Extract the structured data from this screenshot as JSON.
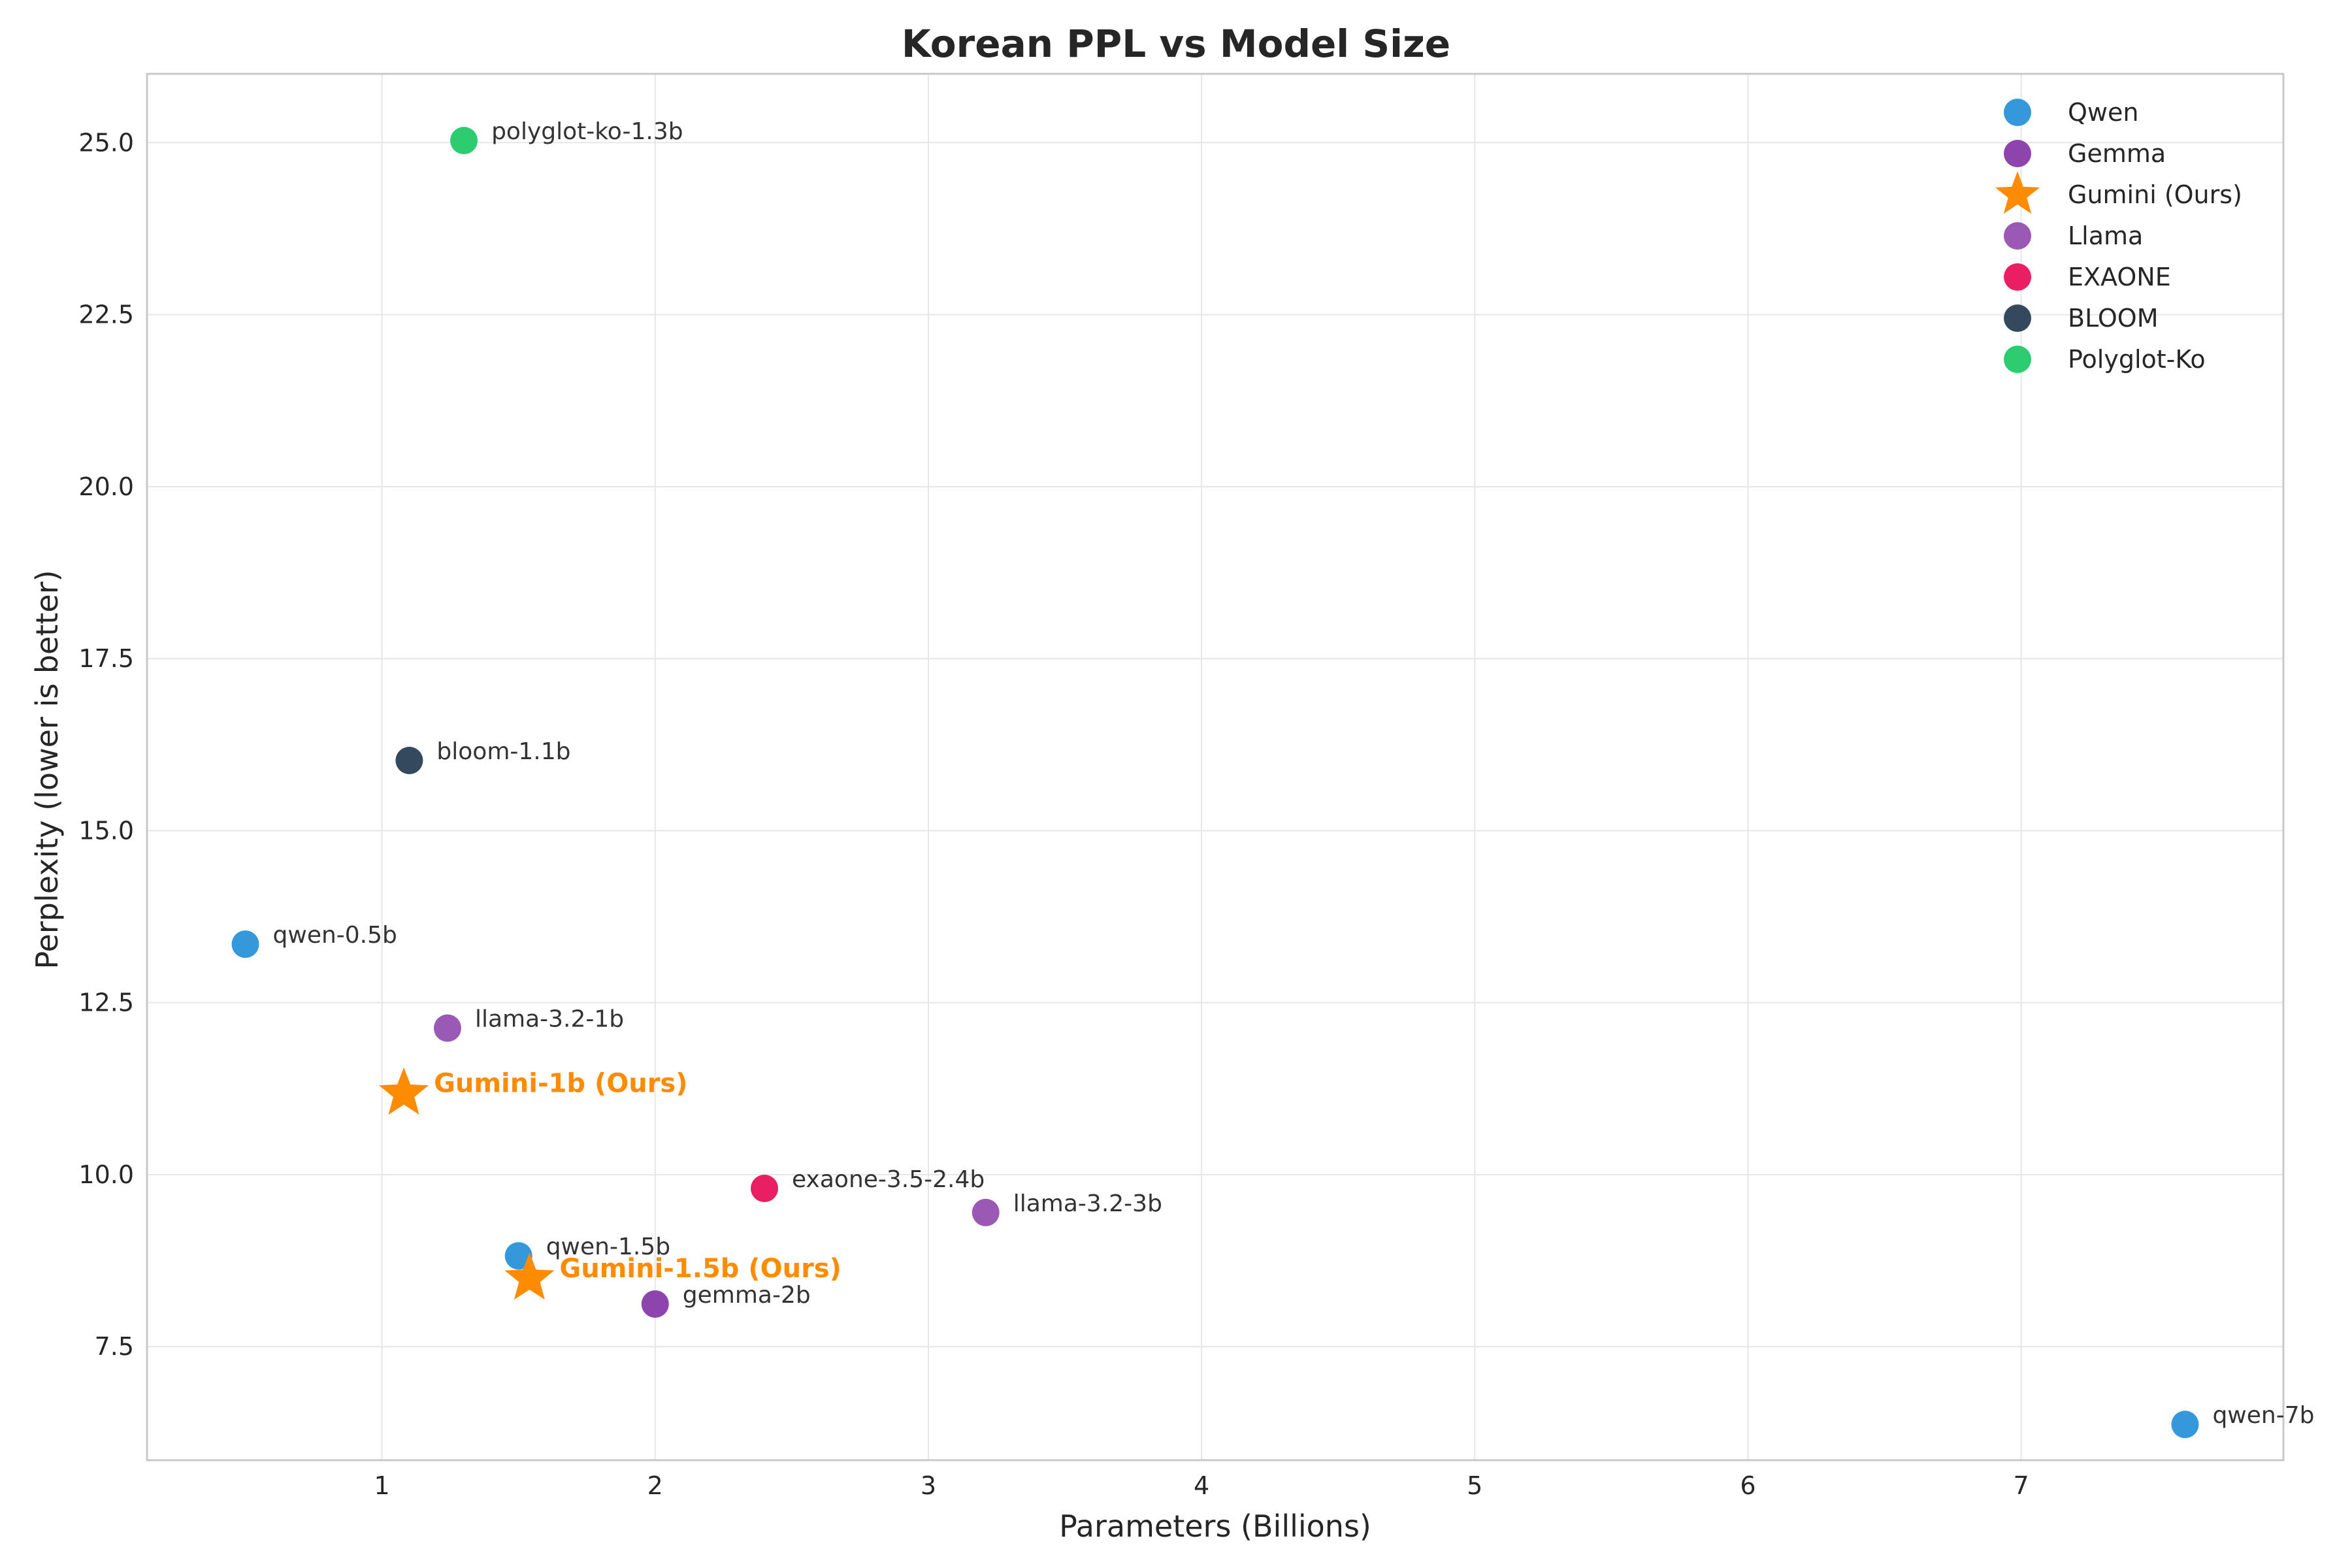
{
  "chart_data": {
    "type": "scatter",
    "title": "Korean PPL vs Model Size",
    "xlabel": "Parameters (Billions)",
    "ylabel": "Perplexity (lower is better)",
    "xlim": [
      0.14,
      7.96
    ],
    "ylim": [
      5.85,
      26.0
    ],
    "xticks": [
      1,
      2,
      3,
      4,
      5,
      6,
      7
    ],
    "xtick_labels": [
      "1",
      "2",
      "3",
      "4",
      "5",
      "6",
      "7"
    ],
    "yticks": [
      7.5,
      10.0,
      12.5,
      15.0,
      17.5,
      20.0,
      22.5,
      25.0
    ],
    "ytick_labels": [
      "7.5",
      "10.0",
      "12.5",
      "15.0",
      "17.5",
      "20.0",
      "22.5",
      "25.0"
    ],
    "grid": true,
    "legend_position": "top-right",
    "series": [
      {
        "name": "Qwen",
        "color": "#3498db",
        "marker": "circle",
        "points": [
          {
            "label": "qwen-0.5b",
            "x": 0.5,
            "y": 13.35
          },
          {
            "label": "qwen-1.5b",
            "x": 1.5,
            "y": 8.82
          },
          {
            "label": "qwen-7b",
            "x": 7.6,
            "y": 6.37
          }
        ]
      },
      {
        "name": "Gemma",
        "color": "#8e44ad",
        "marker": "circle",
        "points": [
          {
            "label": "gemma-2b",
            "x": 2.0,
            "y": 8.12
          }
        ]
      },
      {
        "name": "Gumini (Ours)",
        "color": "#ff8c00",
        "marker": "star",
        "points": [
          {
            "label": "Gumini-1b (Ours)",
            "x": 1.08,
            "y": 11.18
          },
          {
            "label": "Gumini-1.5b (Ours)",
            "x": 1.54,
            "y": 8.49
          }
        ]
      },
      {
        "name": "Llama",
        "color": "#9b59b6",
        "marker": "circle",
        "points": [
          {
            "label": "llama-3.2-1b",
            "x": 1.24,
            "y": 12.13
          },
          {
            "label": "llama-3.2-3b",
            "x": 3.21,
            "y": 9.45
          }
        ]
      },
      {
        "name": "EXAONE",
        "color": "#e91e63",
        "marker": "circle",
        "points": [
          {
            "label": "exaone-3.5-2.4b",
            "x": 2.4,
            "y": 9.8
          }
        ]
      },
      {
        "name": "BLOOM",
        "color": "#34495e",
        "marker": "circle",
        "points": [
          {
            "label": "bloom-1.1b",
            "x": 1.1,
            "y": 16.02
          }
        ]
      },
      {
        "name": "Polyglot-Ko",
        "color": "#2ecc71",
        "marker": "circle",
        "points": [
          {
            "label": "polyglot-ko-1.3b",
            "x": 1.3,
            "y": 25.03
          }
        ]
      }
    ]
  }
}
